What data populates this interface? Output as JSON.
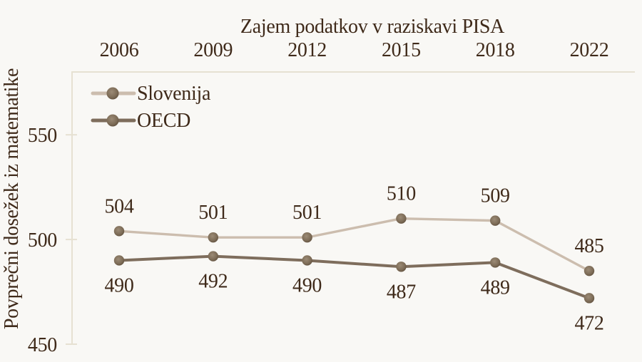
{
  "figure": {
    "background": "#f9f8f5",
    "text_color": "#3f2a1a",
    "axis_color": "#e6e1d2",
    "marker_highlight": "#9c8b76",
    "marker_fill": "#7d6c57",
    "marker_edge": "#5a4a38"
  },
  "chart_data": {
    "type": "line",
    "title": "Zajem podatkov v raziskavi PISA",
    "xlabel": "",
    "ylabel": "Povprečni dosežek iz matematike",
    "categories": [
      "2006",
      "2009",
      "2012",
      "2015",
      "2018",
      "2022"
    ],
    "x_axis_position": "top",
    "y_ticks": [
      450,
      500,
      550
    ],
    "ylim": [
      450,
      580
    ],
    "grid": false,
    "legend_position": "inside-top-left",
    "series": [
      {
        "name": "Slovenija",
        "color": "#ccbdae",
        "values": [
          504,
          501,
          501,
          510,
          509,
          485
        ],
        "value_labels": "above"
      },
      {
        "name": "OECD",
        "color": "#7e6d5c",
        "values": [
          490,
          492,
          490,
          487,
          489,
          472
        ],
        "value_labels": "below"
      }
    ]
  }
}
